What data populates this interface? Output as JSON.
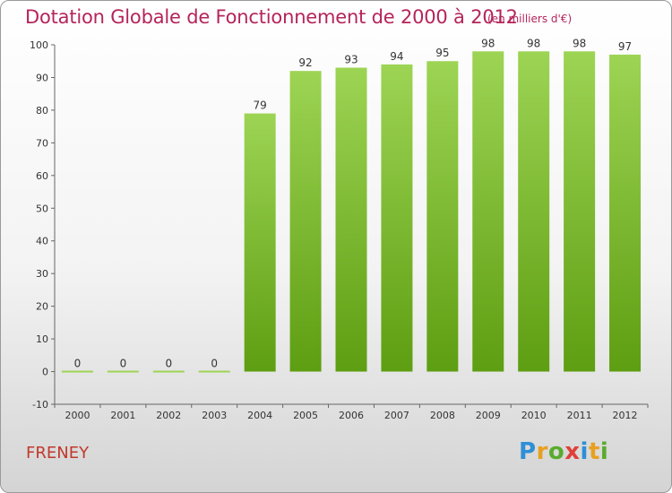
{
  "title": "Dotation Globale de Fonctionnement de 2000 à 2012",
  "unit_note": "(en milliers d'€)",
  "place_name": "FRENEY",
  "logo": {
    "letters": [
      "P",
      "r",
      "o",
      "x",
      "i",
      "t",
      "i"
    ],
    "colors": [
      "#2f8fd6",
      "#e8a020",
      "#5aab2e",
      "#e0403a",
      "#2f8fd6",
      "#e8a020",
      "#5aab2e"
    ]
  },
  "chart_data": {
    "type": "bar",
    "title": "Dotation Globale de Fonctionnement de 2000 à 2012",
    "xlabel": "",
    "ylabel": "",
    "categories": [
      "2000",
      "2001",
      "2002",
      "2003",
      "2004",
      "2005",
      "2006",
      "2007",
      "2008",
      "2009",
      "2010",
      "2011",
      "2012"
    ],
    "values": [
      0,
      0,
      0,
      0,
      79,
      92,
      93,
      94,
      95,
      98,
      98,
      98,
      97
    ],
    "ylim": [
      -10,
      100
    ],
    "yticks": [
      -10,
      0,
      10,
      20,
      30,
      40,
      50,
      60,
      70,
      80,
      90,
      100
    ],
    "grid": false,
    "bar_color_top": "#9dd454",
    "bar_color_bottom": "#5e9e12"
  }
}
